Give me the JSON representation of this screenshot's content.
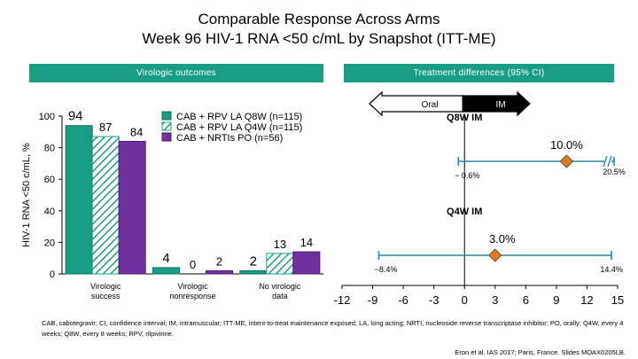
{
  "title_line1": "Comparable Response Across Arms",
  "title_line2": "Week 96 HIV-1 RNA <50 c/mL by Snapshot (ITT-ME)",
  "header_left": "Virologic outcomes",
  "header_right": "Treatment differences (95% CI)",
  "footer_text": "CAB, cabotegravir; CI, confidence interval; IM, intramuscular; ITT-ME, intent-to-treat maintenance exposed; LA, long acting; NRTI, nucleoside reverse transcriptase inhibitor; PO, orally; Q4W, every 4 weeks; Q8W, every 8 weeks; RPV, rilpivirine.",
  "citation": "Eron et al. IAS 2017; Paris, France. Slides MOAX0205LB.",
  "colors": {
    "q8w": "#1a9e83",
    "q4w_hatch": "#1a9e83",
    "po": "#7030a0",
    "header": "#1a9e83",
    "ci_line": "#2e86a8",
    "point": "#e07a1f"
  },
  "chart_data": [
    {
      "type": "bar",
      "ylabel": "HIV-1 RNA <50 c/mL, %",
      "ylim": [
        0,
        100
      ],
      "yticks": [
        "0",
        "20",
        "40",
        "60",
        "80",
        "100"
      ],
      "categories": [
        "Virologic success",
        "Virologic nonresponse",
        "No virologic data"
      ],
      "series": [
        {
          "name": "CAB + RPV LA Q8W (n=115)",
          "values": [
            94,
            4,
            2
          ],
          "labels": [
            "94",
            "4",
            "2"
          ]
        },
        {
          "name": "CAB + RPV LA Q4W (n=115)",
          "values": [
            87,
            0,
            13
          ],
          "labels": [
            "87",
            "0",
            "13"
          ]
        },
        {
          "name": "CAB + NRTIs PO  (n=56)",
          "values": [
            84,
            2,
            14
          ],
          "labels": [
            "84",
            "2",
            "14"
          ]
        }
      ],
      "legend_position": "top-right"
    },
    {
      "type": "forest",
      "xlim": [
        -12,
        15
      ],
      "xticks": [
        "-12",
        "-9",
        "-6",
        "-3",
        "0",
        "3",
        "6",
        "9",
        "12",
        "15"
      ],
      "arrow_left_label": "Oral",
      "arrow_right_label": "IM",
      "rows": [
        {
          "label": "Q8W IM",
          "estimate": 10.0,
          "estimate_label": "10.0%",
          "lower": -0.6,
          "lower_label": "− 0.6%",
          "upper": 20.5,
          "upper_label": "20.5%",
          "axis_break": true
        },
        {
          "label": "Q4W IM",
          "estimate": 3.0,
          "estimate_label": "3.0%",
          "lower": -8.4,
          "lower_label": "−8.4%",
          "upper": 14.4,
          "upper_label": "14.4%",
          "axis_break": false
        }
      ]
    }
  ]
}
